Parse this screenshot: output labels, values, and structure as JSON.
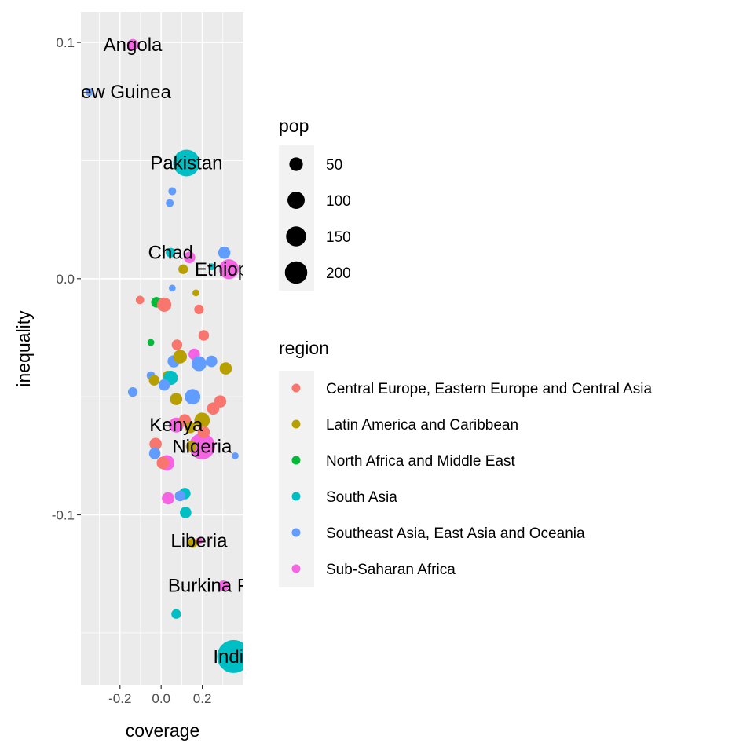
{
  "chart_data": {
    "type": "scatter",
    "xlabel": "coverage",
    "ylabel": "inequality",
    "xlim": [
      -0.39,
      0.4
    ],
    "ylim": [
      -0.172,
      0.113
    ],
    "xticks": [
      {
        "v": -0.2,
        "label": "-0.2"
      },
      {
        "v": 0.0,
        "label": "0.0"
      },
      {
        "v": 0.2,
        "label": "0.2"
      }
    ],
    "yticks": [
      {
        "v": 0.1,
        "label": "0.1"
      },
      {
        "v": 0.0,
        "label": "0.0"
      },
      {
        "v": -0.1,
        "label": "-0.1"
      }
    ],
    "grid": true,
    "size_legend": {
      "title": "pop",
      "breaks": [
        {
          "v": 50,
          "label": "50"
        },
        {
          "v": 100,
          "label": "100"
        },
        {
          "v": 150,
          "label": "150"
        },
        {
          "v": 200,
          "label": "200"
        }
      ]
    },
    "color_legend": {
      "title": "region",
      "placement": "right",
      "entries": [
        {
          "name": "Central Europe, Eastern Europe and Central Asia",
          "color": "#F8766D"
        },
        {
          "name": "Latin America and Caribbean",
          "color": "#B79F00"
        },
        {
          "name": "North Africa and Middle East",
          "color": "#00BA38"
        },
        {
          "name": "South Asia",
          "color": "#00BFC4"
        },
        {
          "name": "Southeast Asia, East Asia and Oceania",
          "color": "#619CFF"
        },
        {
          "name": "Sub-Saharan Africa",
          "color": "#F564E3"
        }
      ]
    },
    "points": [
      {
        "x": -0.138,
        "y": 0.099,
        "r": 5,
        "pop": 25,
        "label": "Angola"
      },
      {
        "x": -0.349,
        "y": 0.079,
        "r": 4,
        "pop": 8,
        "label": "Papua New Guinea"
      },
      {
        "x": 0.123,
        "y": 0.049,
        "r": 3,
        "pop": 200,
        "label": "Pakistan"
      },
      {
        "x": 0.046,
        "y": 0.011,
        "r": 3,
        "pop": 15,
        "label": "Chad"
      },
      {
        "x": 0.329,
        "y": 0.004,
        "r": 5,
        "pop": 100,
        "label": "Ethiopia"
      },
      {
        "x": 0.073,
        "y": -0.062,
        "r": 5,
        "pop": 50,
        "label": "Kenya"
      },
      {
        "x": 0.199,
        "y": -0.071,
        "r": 5,
        "pop": 190,
        "label": "Nigeria"
      },
      {
        "x": 0.184,
        "y": -0.111,
        "r": 5,
        "pop": 5,
        "label": "Liberia"
      },
      {
        "x": 0.303,
        "y": -0.13,
        "r": 5,
        "pop": 20,
        "label": "Burkina Faso"
      },
      {
        "x": 0.352,
        "y": -0.16,
        "r": 3,
        "pop": 1300,
        "label": "India"
      },
      {
        "x": 0.054,
        "y": 0.037,
        "r": 4,
        "pop": 8
      },
      {
        "x": 0.042,
        "y": 0.032,
        "r": 4,
        "pop": 8
      },
      {
        "x": 0.307,
        "y": 0.011,
        "r": 4,
        "pop": 30
      },
      {
        "x": 0.138,
        "y": 0.009,
        "r": 5,
        "pop": 25
      },
      {
        "x": 0.107,
        "y": 0.004,
        "r": 1,
        "pop": 15
      },
      {
        "x": 0.245,
        "y": 0.005,
        "r": 3,
        "pop": 5
      },
      {
        "x": 0.054,
        "y": -0.004,
        "r": 4,
        "pop": 5
      },
      {
        "x": 0.169,
        "y": -0.006,
        "r": 1,
        "pop": 5
      },
      {
        "x": -0.103,
        "y": -0.009,
        "r": 0,
        "pop": 10
      },
      {
        "x": -0.023,
        "y": -0.01,
        "r": 2,
        "pop": 20
      },
      {
        "x": 0.015,
        "y": -0.011,
        "r": 0,
        "pop": 45
      },
      {
        "x": 0.184,
        "y": -0.013,
        "r": 0,
        "pop": 15
      },
      {
        "x": -0.05,
        "y": -0.027,
        "r": 2,
        "pop": 5
      },
      {
        "x": 0.207,
        "y": -0.024,
        "r": 0,
        "pop": 20
      },
      {
        "x": 0.077,
        "y": -0.028,
        "r": 0,
        "pop": 20
      },
      {
        "x": 0.161,
        "y": -0.032,
        "r": 5,
        "pop": 25
      },
      {
        "x": 0.061,
        "y": -0.035,
        "r": 4,
        "pop": 30
      },
      {
        "x": 0.092,
        "y": -0.033,
        "r": 1,
        "pop": 40
      },
      {
        "x": 0.184,
        "y": -0.036,
        "r": 4,
        "pop": 50
      },
      {
        "x": 0.245,
        "y": -0.035,
        "r": 4,
        "pop": 25
      },
      {
        "x": 0.314,
        "y": -0.038,
        "r": 1,
        "pop": 30
      },
      {
        "x": -0.05,
        "y": -0.041,
        "r": 4,
        "pop": 10
      },
      {
        "x": 0.031,
        "y": -0.041,
        "r": 1,
        "pop": 15
      },
      {
        "x": 0.046,
        "y": -0.042,
        "r": 3,
        "pop": 45
      },
      {
        "x": -0.034,
        "y": -0.043,
        "r": 1,
        "pop": 20
      },
      {
        "x": 0.015,
        "y": -0.045,
        "r": 4,
        "pop": 25
      },
      {
        "x": -0.138,
        "y": -0.048,
        "r": 4,
        "pop": 15
      },
      {
        "x": 0.073,
        "y": -0.051,
        "r": 1,
        "pop": 30
      },
      {
        "x": 0.153,
        "y": -0.05,
        "r": 4,
        "pop": 55
      },
      {
        "x": 0.287,
        "y": -0.052,
        "r": 0,
        "pop": 30
      },
      {
        "x": 0.253,
        "y": -0.055,
        "r": 0,
        "pop": 30
      },
      {
        "x": 0.199,
        "y": -0.06,
        "r": 1,
        "pop": 55
      },
      {
        "x": 0.115,
        "y": -0.06,
        "r": 0,
        "pop": 30
      },
      {
        "x": 0.207,
        "y": -0.065,
        "r": 0,
        "pop": 30
      },
      {
        "x": 0.142,
        "y": -0.063,
        "r": 1,
        "pop": 25
      },
      {
        "x": -0.027,
        "y": -0.07,
        "r": 0,
        "pop": 30
      },
      {
        "x": -0.031,
        "y": -0.074,
        "r": 4,
        "pop": 25
      },
      {
        "x": 0.027,
        "y": -0.078,
        "r": 5,
        "pop": 55
      },
      {
        "x": 0.008,
        "y": -0.078,
        "r": 0,
        "pop": 30
      },
      {
        "x": 0.36,
        "y": -0.075,
        "r": 4,
        "pop": 5
      },
      {
        "x": 0.146,
        "y": -0.071,
        "r": 1,
        "pop": 20
      },
      {
        "x": 0.115,
        "y": -0.091,
        "r": 3,
        "pop": 25
      },
      {
        "x": 0.034,
        "y": -0.093,
        "r": 5,
        "pop": 30
      },
      {
        "x": 0.092,
        "y": -0.092,
        "r": 4,
        "pop": 20
      },
      {
        "x": 0.119,
        "y": -0.099,
        "r": 3,
        "pop": 25
      },
      {
        "x": 0.153,
        "y": -0.112,
        "r": 1,
        "pop": 15
      },
      {
        "x": 0.073,
        "y": -0.142,
        "r": 3,
        "pop": 15
      }
    ]
  }
}
